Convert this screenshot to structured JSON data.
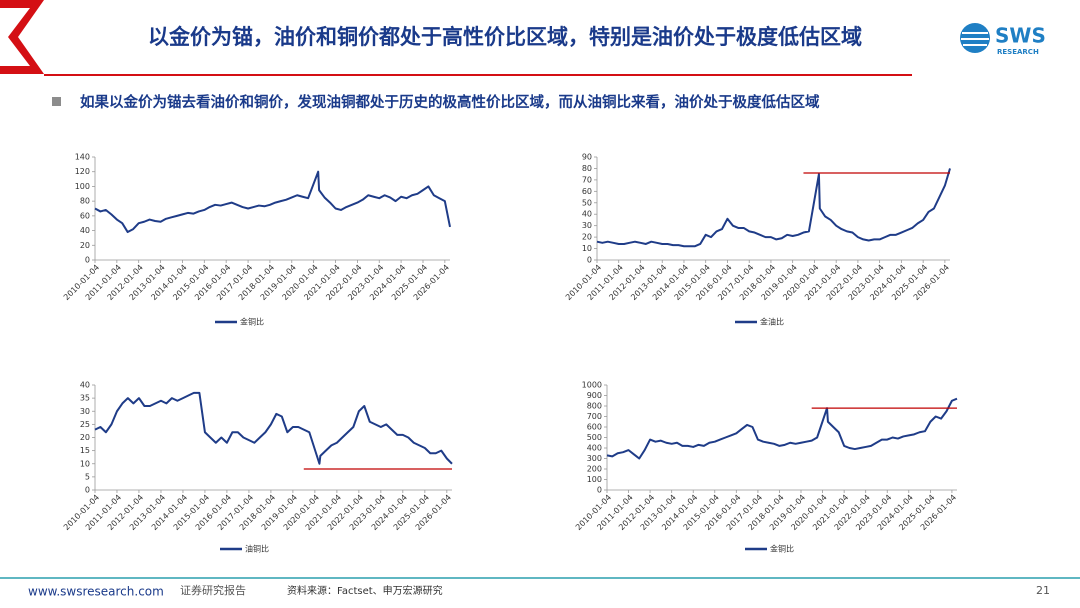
{
  "header": {
    "title": "以金价为锚，油价和铜价都处于高性价比区域，特别是油价处于极度低估区域",
    "logo": "SWS",
    "logo_sub": "RESEARCH"
  },
  "subtitle": "如果以金价为锚去看油价和铜价，发现油铜都处于历史的极高性价比区域，而从油铜比来看，油价处于极度低估区域",
  "footer": {
    "site": "www.swsresearch.com",
    "kind": "证券研究报告",
    "source": "资料来源：Factset、申万宏源研究",
    "page": "21"
  },
  "chart_data": [
    {
      "type": "line",
      "x": [
        "2010-01-04",
        "2010-04-04",
        "2010-07-04",
        "2010-10-04",
        "2011-01-04",
        "2011-04-04",
        "2011-07-04",
        "2011-10-04",
        "2012-01-04",
        "2012-04-04",
        "2012-07-04",
        "2012-10-04",
        "2013-01-04",
        "2013-04-04",
        "2013-07-04",
        "2013-10-04",
        "2014-01-04",
        "2014-04-04",
        "2014-07-04",
        "2014-10-04",
        "2015-01-04",
        "2015-04-04",
        "2015-07-04",
        "2015-10-04",
        "2016-01-04",
        "2016-04-04",
        "2016-07-04",
        "2016-10-04",
        "2017-01-04",
        "2017-04-04",
        "2017-07-04",
        "2017-10-04",
        "2018-01-04",
        "2018-04-04",
        "2018-07-04",
        "2018-10-04",
        "2019-01-04",
        "2019-04-04",
        "2019-07-04",
        "2019-10-04",
        "2020-03-20",
        "2020-04-04",
        "2020-07-04",
        "2020-10-04",
        "2021-01-04",
        "2021-04-04",
        "2021-07-04",
        "2021-10-04",
        "2022-01-04",
        "2022-04-04",
        "2022-07-04",
        "2022-10-04",
        "2023-01-04",
        "2023-04-04",
        "2023-07-04",
        "2023-10-04",
        "2024-01-04",
        "2024-04-04",
        "2024-07-04",
        "2024-10-04",
        "2025-01-04",
        "2025-04-04",
        "2025-07-04",
        "2025-10-04",
        "2026-01-04",
        "2026-03-31"
      ],
      "series": [
        {
          "name": "金铜比",
          "color": "#1f3c88",
          "values": [
            70,
            66,
            68,
            62,
            55,
            50,
            38,
            42,
            50,
            52,
            55,
            53,
            52,
            56,
            58,
            60,
            62,
            64,
            63,
            66,
            68,
            72,
            75,
            74,
            76,
            78,
            75,
            72,
            70,
            72,
            74,
            73,
            75,
            78,
            80,
            82,
            85,
            88,
            86,
            84,
            120,
            95,
            85,
            78,
            70,
            68,
            72,
            75,
            78,
            82,
            88,
            86,
            84,
            88,
            85,
            80,
            86,
            84,
            88,
            90,
            95,
            100,
            88,
            84,
            80,
            45
          ]
        }
      ],
      "xlim": [
        "2010-01-04",
        "2026-03-31"
      ],
      "xticks": [
        "2010-01-04",
        "2011-01-04",
        "2012-01-04",
        "2013-01-04",
        "2014-01-04",
        "2015-01-04",
        "2016-01-04",
        "2017-01-04",
        "2018-01-04",
        "2019-01-04",
        "2020-01-04",
        "2021-01-04",
        "2022-01-04",
        "2023-01-04",
        "2024-01-04",
        "2025-01-04",
        "2026-01-04"
      ],
      "ylim": [
        0,
        140
      ],
      "yticks": [
        0,
        20,
        40,
        60,
        80,
        100,
        120,
        140
      ],
      "grid": false,
      "legend": "bottom"
    },
    {
      "type": "line",
      "x": [
        "2010-01-04",
        "2010-04-04",
        "2010-07-04",
        "2010-10-04",
        "2011-01-04",
        "2011-04-04",
        "2011-07-04",
        "2011-10-04",
        "2012-01-04",
        "2012-04-04",
        "2012-07-04",
        "2012-10-04",
        "2013-01-04",
        "2013-04-04",
        "2013-07-04",
        "2013-10-04",
        "2014-01-04",
        "2014-04-04",
        "2014-07-04",
        "2014-10-04",
        "2015-01-04",
        "2015-04-04",
        "2015-07-04",
        "2015-10-04",
        "2016-01-04",
        "2016-04-04",
        "2016-07-04",
        "2016-10-04",
        "2017-01-04",
        "2017-04-04",
        "2017-07-04",
        "2017-10-04",
        "2018-01-04",
        "2018-04-04",
        "2018-07-04",
        "2018-10-04",
        "2019-01-04",
        "2019-04-04",
        "2019-07-04",
        "2019-10-04",
        "2020-03-20",
        "2020-04-04",
        "2020-07-04",
        "2020-10-04",
        "2021-01-04",
        "2021-04-04",
        "2021-07-04",
        "2021-10-04",
        "2022-01-04",
        "2022-04-04",
        "2022-07-04",
        "2022-10-04",
        "2023-01-04",
        "2023-04-04",
        "2023-07-04",
        "2023-10-04",
        "2024-01-04",
        "2024-04-04",
        "2024-07-04",
        "2024-10-04",
        "2025-01-04",
        "2025-04-04",
        "2025-07-04",
        "2025-10-04",
        "2026-01-04",
        "2026-03-31"
      ],
      "series": [
        {
          "name": "金油比",
          "color": "#1f3c88",
          "values": [
            16,
            15,
            16,
            15,
            14,
            14,
            15,
            16,
            15,
            14,
            16,
            15,
            14,
            14,
            13,
            13,
            12,
            12,
            12,
            14,
            22,
            20,
            25,
            27,
            36,
            30,
            28,
            28,
            25,
            24,
            22,
            20,
            20,
            18,
            19,
            22,
            21,
            22,
            24,
            25,
            75,
            45,
            38,
            35,
            30,
            27,
            25,
            24,
            20,
            18,
            17,
            18,
            18,
            20,
            22,
            22,
            24,
            26,
            28,
            32,
            35,
            42,
            45,
            55,
            65,
            80
          ]
        }
      ],
      "reference_lines": [
        {
          "value": 76,
          "color": "#c00000",
          "from": "2019-07-04",
          "to": "2026-03-31"
        }
      ],
      "xlim": [
        "2010-01-04",
        "2026-03-31"
      ],
      "xticks": [
        "2010-01-04",
        "2011-01-04",
        "2012-01-04",
        "2013-01-04",
        "2014-01-04",
        "2015-01-04",
        "2016-01-04",
        "2017-01-04",
        "2018-01-04",
        "2019-01-04",
        "2020-01-04",
        "2021-01-04",
        "2022-01-04",
        "2023-01-04",
        "2024-01-04",
        "2025-01-04",
        "2026-01-04"
      ],
      "ylim": [
        0,
        90
      ],
      "yticks": [
        0,
        10,
        20,
        30,
        40,
        50,
        60,
        70,
        80,
        90
      ],
      "grid": false,
      "legend": "bottom"
    },
    {
      "type": "line",
      "x": [
        "2010-01-04",
        "2010-04-04",
        "2010-07-04",
        "2010-10-04",
        "2011-01-04",
        "2011-04-04",
        "2011-07-04",
        "2011-10-04",
        "2012-01-04",
        "2012-04-04",
        "2012-07-04",
        "2012-10-04",
        "2013-01-04",
        "2013-04-04",
        "2013-07-04",
        "2013-10-04",
        "2014-01-04",
        "2014-04-04",
        "2014-07-04",
        "2014-10-04",
        "2015-01-04",
        "2015-04-04",
        "2015-07-04",
        "2015-10-04",
        "2016-01-04",
        "2016-04-04",
        "2016-07-04",
        "2016-10-04",
        "2017-01-04",
        "2017-04-04",
        "2017-07-04",
        "2017-10-04",
        "2018-01-04",
        "2018-04-04",
        "2018-07-04",
        "2018-10-04",
        "2019-01-04",
        "2019-04-04",
        "2019-07-04",
        "2019-10-04",
        "2020-03-20",
        "2020-04-04",
        "2020-07-04",
        "2020-10-04",
        "2021-01-04",
        "2021-04-04",
        "2021-07-04",
        "2021-10-04",
        "2022-01-04",
        "2022-04-04",
        "2022-07-04",
        "2022-10-04",
        "2023-01-04",
        "2023-04-04",
        "2023-07-04",
        "2023-10-04",
        "2024-01-04",
        "2024-04-04",
        "2024-07-04",
        "2024-10-04",
        "2025-01-04",
        "2025-04-04",
        "2025-07-04",
        "2025-10-04",
        "2026-01-04",
        "2026-03-31"
      ],
      "series": [
        {
          "name": "油铜比",
          "color": "#1f3c88",
          "values": [
            23,
            24,
            22,
            25,
            30,
            33,
            35,
            33,
            35,
            32,
            32,
            33,
            34,
            33,
            35,
            34,
            35,
            36,
            37,
            37,
            22,
            20,
            18,
            20,
            18,
            22,
            22,
            20,
            19,
            18,
            20,
            22,
            25,
            29,
            28,
            22,
            24,
            24,
            23,
            22,
            10,
            13,
            15,
            17,
            18,
            20,
            22,
            24,
            30,
            32,
            26,
            25,
            24,
            25,
            23,
            21,
            21,
            20,
            18,
            17,
            16,
            14,
            14,
            15,
            12,
            10
          ]
        }
      ],
      "reference_lines": [
        {
          "value": 8,
          "color": "#c00000",
          "from": "2019-07-04",
          "to": "2026-03-31"
        }
      ],
      "xlim": [
        "2010-01-04",
        "2026-03-31"
      ],
      "xticks": [
        "2010-01-04",
        "2011-01-04",
        "2012-01-04",
        "2013-01-04",
        "2014-01-04",
        "2015-01-04",
        "2016-01-04",
        "2017-01-04",
        "2018-01-04",
        "2019-01-04",
        "2020-01-04",
        "2021-01-04",
        "2022-01-04",
        "2023-01-04",
        "2024-01-04",
        "2025-01-04",
        "2026-01-04"
      ],
      "ylim": [
        0,
        40
      ],
      "yticks": [
        0,
        5,
        10,
        15,
        20,
        25,
        30,
        35,
        40
      ],
      "grid": false,
      "legend": "bottom"
    },
    {
      "type": "line",
      "x": [
        "2010-01-04",
        "2010-04-04",
        "2010-07-04",
        "2010-10-04",
        "2011-01-04",
        "2011-04-04",
        "2011-07-04",
        "2011-10-04",
        "2012-01-04",
        "2012-04-04",
        "2012-07-04",
        "2012-10-04",
        "2013-01-04",
        "2013-04-04",
        "2013-07-04",
        "2013-10-04",
        "2014-01-04",
        "2014-04-04",
        "2014-07-04",
        "2014-10-04",
        "2015-01-04",
        "2015-04-04",
        "2015-07-04",
        "2015-10-04",
        "2016-01-04",
        "2016-04-04",
        "2016-07-04",
        "2016-10-04",
        "2017-01-04",
        "2017-04-04",
        "2017-07-04",
        "2017-10-04",
        "2018-01-04",
        "2018-04-04",
        "2018-07-04",
        "2018-10-04",
        "2019-01-04",
        "2019-04-04",
        "2019-07-04",
        "2019-10-04",
        "2020-03-20",
        "2020-04-04",
        "2020-07-04",
        "2020-10-04",
        "2021-01-04",
        "2021-04-04",
        "2021-07-04",
        "2021-10-04",
        "2022-01-04",
        "2022-04-04",
        "2022-07-04",
        "2022-10-04",
        "2023-01-04",
        "2023-04-04",
        "2023-07-04",
        "2023-10-04",
        "2024-01-04",
        "2024-04-04",
        "2024-07-04",
        "2024-10-04",
        "2025-01-04",
        "2025-04-04",
        "2025-07-04",
        "2025-10-04",
        "2026-01-04",
        "2026-03-31"
      ],
      "series": [
        {
          "name": "金铜比",
          "color": "#1f3c88",
          "values": [
            330,
            320,
            350,
            360,
            380,
            340,
            300,
            380,
            480,
            460,
            470,
            450,
            440,
            450,
            420,
            420,
            410,
            430,
            420,
            450,
            460,
            480,
            500,
            520,
            540,
            580,
            620,
            600,
            480,
            460,
            450,
            440,
            420,
            430,
            450,
            440,
            450,
            460,
            470,
            500,
            780,
            650,
            600,
            550,
            420,
            400,
            390,
            400,
            410,
            420,
            450,
            480,
            480,
            500,
            490,
            510,
            520,
            530,
            550,
            560,
            650,
            700,
            680,
            750,
            850,
            870
          ]
        }
      ],
      "reference_lines": [
        {
          "value": 780,
          "color": "#c00000",
          "from": "2019-07-04",
          "to": "2026-03-31"
        }
      ],
      "xlim": [
        "2010-01-04",
        "2026-03-31"
      ],
      "xticks": [
        "2010-01-04",
        "2011-01-04",
        "2012-01-04",
        "2013-01-04",
        "2014-01-04",
        "2015-01-04",
        "2016-01-04",
        "2017-01-04",
        "2018-01-04",
        "2019-01-04",
        "2020-01-04",
        "2021-01-04",
        "2022-01-04",
        "2023-01-04",
        "2024-01-04",
        "2025-01-04",
        "2026-01-04"
      ],
      "ylim": [
        0,
        1000
      ],
      "yticks": [
        0,
        100,
        200,
        300,
        400,
        500,
        600,
        700,
        800,
        900,
        1000
      ],
      "grid": false,
      "legend": "bottom"
    }
  ]
}
